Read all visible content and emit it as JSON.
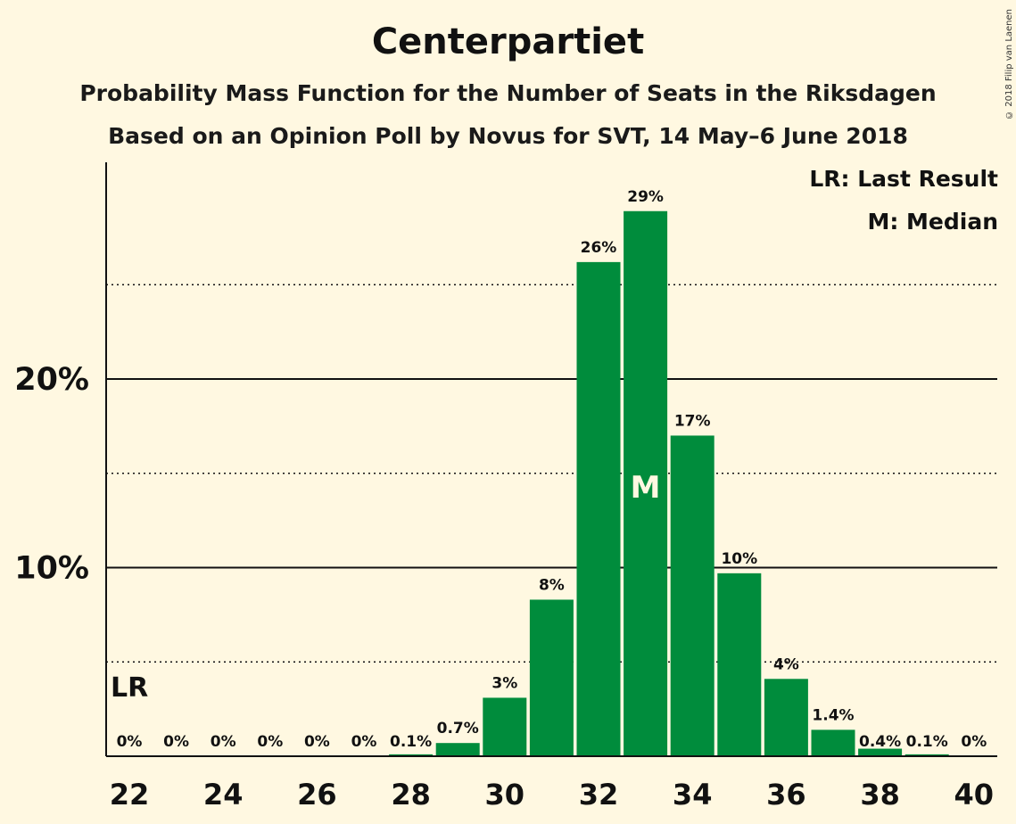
{
  "chart_data": {
    "type": "bar",
    "title": "Centerpartiet",
    "subtitle": "Probability Mass Function for the Number of Seats in the Riksdagen",
    "subtitle2": "Based on an Opinion Poll by Novus for SVT, 14 May–6 June 2018",
    "copyright": "© 2018 Filip van Laenen",
    "categories": [
      22,
      23,
      24,
      25,
      26,
      27,
      28,
      29,
      30,
      31,
      32,
      33,
      34,
      35,
      36,
      37,
      38,
      39,
      40
    ],
    "values": [
      0,
      0,
      0,
      0,
      0,
      0,
      0.1,
      0.7,
      3.1,
      8.3,
      26.2,
      28.9,
      17.0,
      9.7,
      4.1,
      1.4,
      0.4,
      0.1,
      0
    ],
    "labels": [
      "0%",
      "0%",
      "0%",
      "0%",
      "0%",
      "0%",
      "0.1%",
      "0.7%",
      "3%",
      "8%",
      "26%",
      "29%",
      "17%",
      "10%",
      "4%",
      "1.4%",
      "0.4%",
      "0.1%",
      "0%"
    ],
    "xticks": [
      22,
      24,
      26,
      28,
      30,
      32,
      34,
      36,
      38,
      40
    ],
    "yticks": [
      {
        "value": 10,
        "label": "10%"
      },
      {
        "value": 20,
        "label": "20%"
      }
    ],
    "dotted_gridlines": [
      5,
      15,
      25
    ],
    "ylim": [
      0,
      31.5
    ],
    "last_result": 22,
    "median": 33,
    "lr_label": "LR",
    "median_label": "M",
    "legend": [
      "LR: Last Result",
      "M: Median"
    ],
    "bar_color": "#008c3c"
  }
}
